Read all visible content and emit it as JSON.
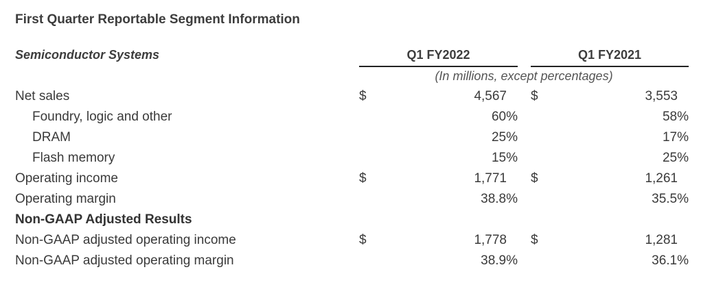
{
  "title": "First Quarter Reportable Segment Information",
  "section": "Semiconductor Systems",
  "columns": [
    "Q1 FY2022",
    "Q1 FY2021"
  ],
  "units_note": "(In millions, except percentages)",
  "rows": [
    {
      "label": "Net sales",
      "q1_fy2022": "4,567",
      "q1_fy2021": "3,553",
      "dollar1": "$",
      "dollar2": "$"
    },
    {
      "label": "Foundry, logic and other",
      "q1_fy2022": "60%",
      "q1_fy2021": "58%"
    },
    {
      "label": "DRAM",
      "q1_fy2022": "25%",
      "q1_fy2021": "17%"
    },
    {
      "label": "Flash memory",
      "q1_fy2022": "15%",
      "q1_fy2021": "25%"
    },
    {
      "label": "Operating income",
      "q1_fy2022": "1,771",
      "q1_fy2021": "1,261",
      "dollar1": "$",
      "dollar2": "$"
    },
    {
      "label": "Operating margin",
      "q1_fy2022": "38.8%",
      "q1_fy2021": "35.5%"
    },
    {
      "label": "Non-GAAP Adjusted Results"
    },
    {
      "label": "Non-GAAP adjusted operating income",
      "q1_fy2022": "1,778",
      "q1_fy2021": "1,281",
      "dollar1": "$",
      "dollar2": "$"
    },
    {
      "label": "Non-GAAP adjusted operating margin",
      "q1_fy2022": "38.9%",
      "q1_fy2021": "36.1%"
    }
  ]
}
